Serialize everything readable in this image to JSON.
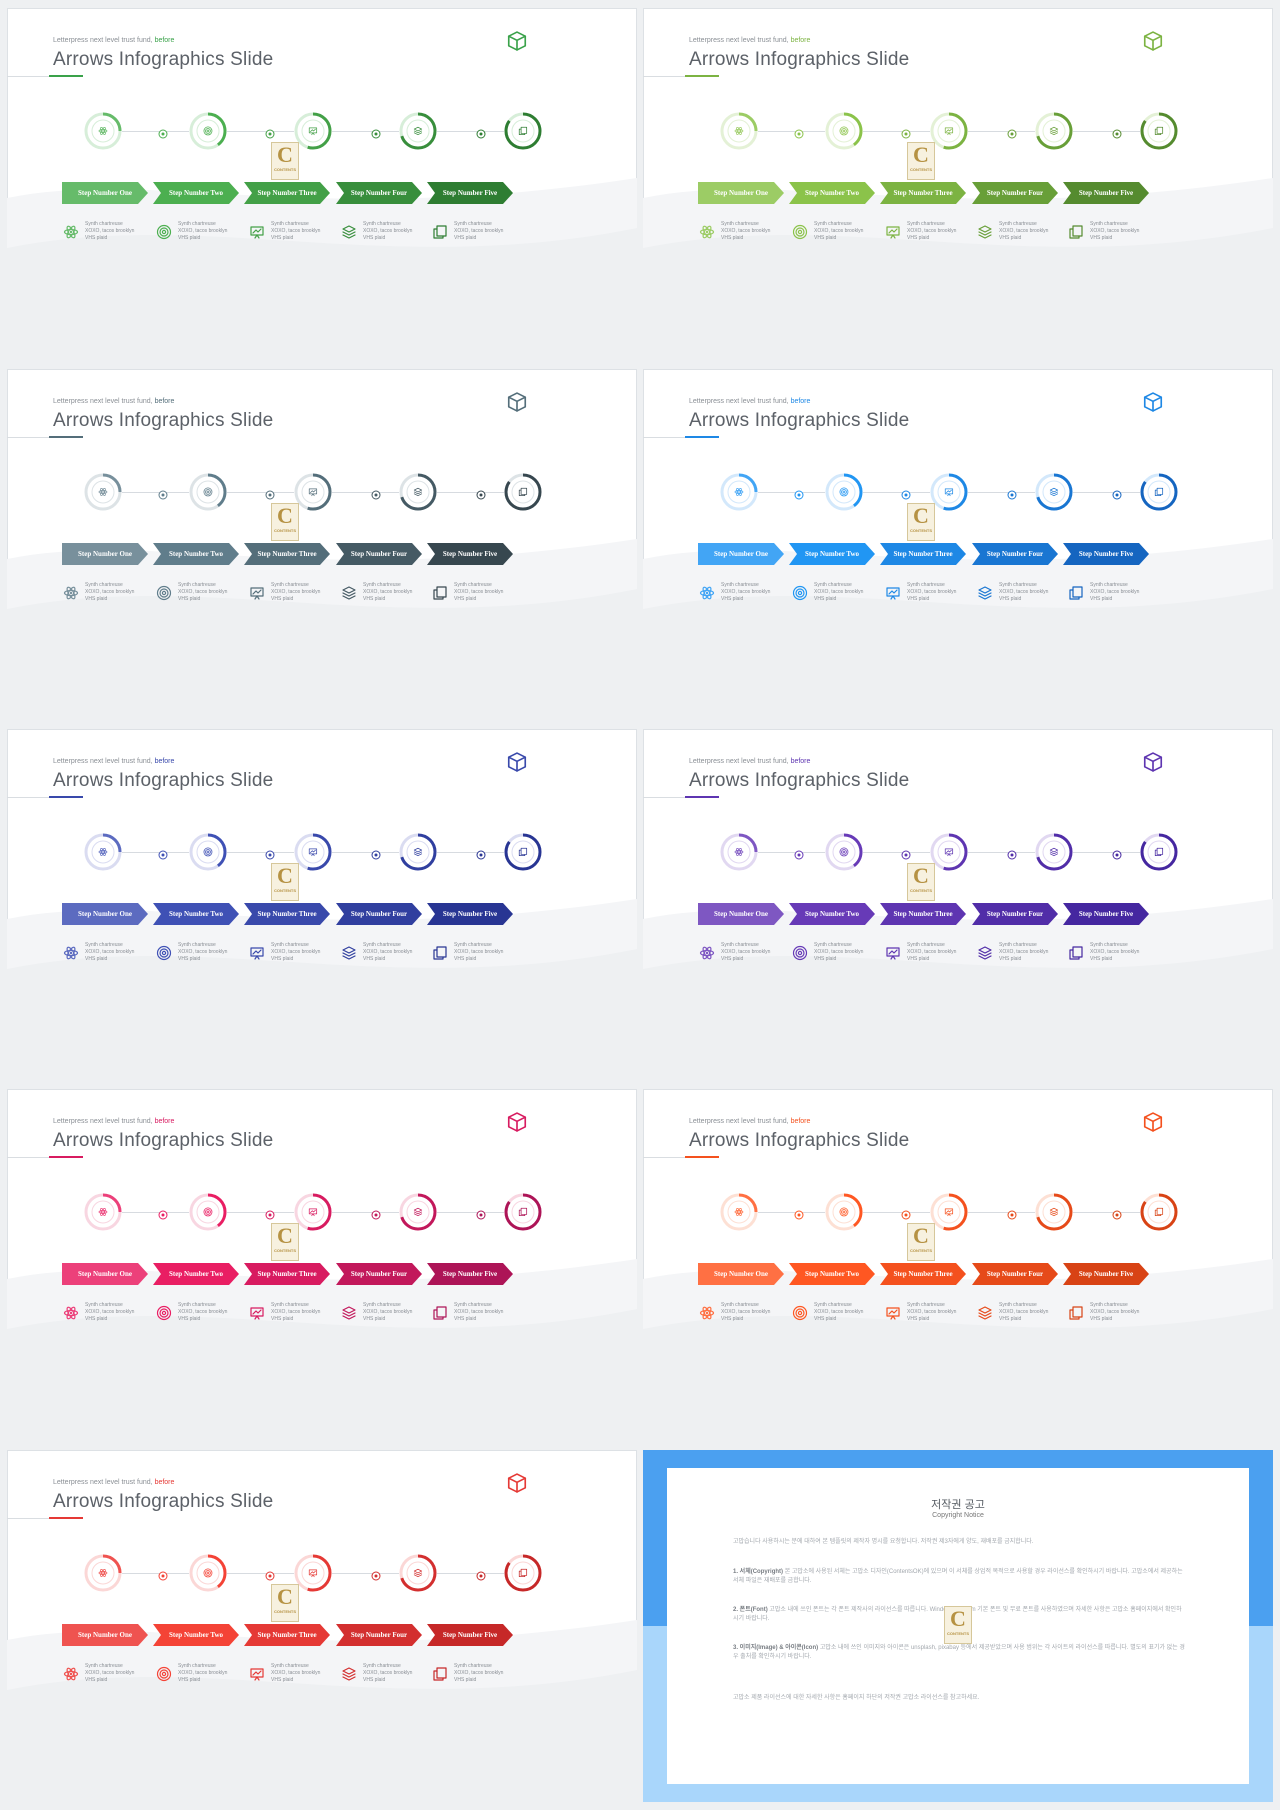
{
  "slide_common": {
    "subtitle_text": "Letterpress next level trust fund,",
    "subtitle_highlight": "before",
    "title": "Arrows Infographics Slide",
    "logo_icon": "cube-icon",
    "step_icons": [
      "atom-icon",
      "target-icon",
      "presentation-icon",
      "layers-icon",
      "copy-icon"
    ],
    "steps": [
      "Step Number One",
      "Step Number Two",
      "Step Number Three",
      "Step Number Four",
      "Step Number Five"
    ],
    "desc_lines": [
      "Synth chartreuse",
      "XOXO, tacos brooklyn",
      "VHS plaid"
    ],
    "progress": [
      0.25,
      0.4,
      0.55,
      0.7,
      0.85
    ],
    "watermark_letter": "C",
    "watermark_text": "CONTENTS"
  },
  "themes": [
    {
      "name": "green-1",
      "accent": "#3aa24a",
      "colors": [
        "#66bb6a",
        "#4caf50",
        "#43a047",
        "#388e3c",
        "#2e7d32"
      ],
      "light": "#d7eed9"
    },
    {
      "name": "green-2",
      "accent": "#7cb342",
      "colors": [
        "#9ccc65",
        "#8bc34a",
        "#7cb342",
        "#689f38",
        "#558b2f"
      ],
      "light": "#e4f1d6"
    },
    {
      "name": "gray",
      "accent": "#546e7a",
      "colors": [
        "#78909c",
        "#607d8b",
        "#546e7a",
        "#455a64",
        "#37474f"
      ],
      "light": "#dde3e6"
    },
    {
      "name": "blue",
      "accent": "#1e88e5",
      "colors": [
        "#42a5f5",
        "#2196f3",
        "#1e88e5",
        "#1976d2",
        "#1565c0"
      ],
      "light": "#d3e8fb"
    },
    {
      "name": "indigo",
      "accent": "#3949ab",
      "colors": [
        "#5c6bc0",
        "#3f51b5",
        "#3949ab",
        "#303f9f",
        "#283593"
      ],
      "light": "#dadcf1"
    },
    {
      "name": "purple",
      "accent": "#5e35b1",
      "colors": [
        "#7e57c2",
        "#673ab7",
        "#5e35b1",
        "#512da8",
        "#4527a0"
      ],
      "light": "#e1d8f1"
    },
    {
      "name": "pink",
      "accent": "#d81b60",
      "colors": [
        "#ec407a",
        "#e91e63",
        "#d81b60",
        "#c2185b",
        "#ad1457"
      ],
      "light": "#f8d6e1"
    },
    {
      "name": "orange",
      "accent": "#f4511e",
      "colors": [
        "#ff7043",
        "#ff5722",
        "#f4511e",
        "#e64a19",
        "#d84315"
      ],
      "light": "#fde0d4"
    },
    {
      "name": "red",
      "accent": "#e53935",
      "colors": [
        "#ef5350",
        "#f44336",
        "#e53935",
        "#d32f2f",
        "#c62828"
      ],
      "light": "#fbd7d6"
    }
  ],
  "notice": {
    "title": "저작권 공고",
    "subtitle": "Copyright Notice",
    "intro": "고맙습니다 사용하시는 분에 대하여 본 템플릿의 제작자 명시를 요청합니다. 저작권 제3자에게 양도, 재배포를 금지합니다.",
    "p1_label": "1. 서체(Copyright)",
    "p1": "본 고맙소에 사용된 서체는 고맙소 디자인(ContentsOK)에 있으며 이 서체를 상업적 목적으로 사용할 경우 라이선스를 확인하시기 바랍니다. 고맙소에서 제공하는 서체 파일은 재배포를 금합니다.",
    "p2_label": "2. 폰트(Font)",
    "p2": "고맙소 내에 쓰인 폰트는 각 폰트 제작사의 라이선스를 따릅니다. Windows System 기본 폰트 및 무료 폰트를 사용하였으며 자세한 사항은 고맙소 홈페이지에서 확인하시기 바랍니다.",
    "p3_label": "3. 이미지(Image) & 아이콘(Icon)",
    "p3": "고맙소 내에 쓰인 이미지와 아이콘은 unsplash, pixabay 등에서 제공받았으며 사용 범위는 각 사이트의 라이선스를 따릅니다. 별도의 표기가 없는 경우 출처를 확인하시기 바랍니다.",
    "footer": "고맙소 제품 라이선스에 대한 자세한 사항은 홈페이지 하단의 저작권 고맙소 라이선스를 참고하세요."
  }
}
